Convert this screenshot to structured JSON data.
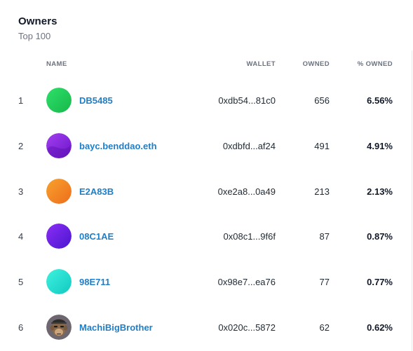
{
  "header": {
    "title": "Owners",
    "subtitle": "Top 100"
  },
  "columns": {
    "name": "NAME",
    "wallet": "WALLET",
    "owned": "OWNED",
    "percent_owned": "% OWNED"
  },
  "owners": [
    {
      "rank": "1",
      "name": "DB5485",
      "wallet": "0xdb54...81c0",
      "owned": "656",
      "percent": "6.56%",
      "avatar_colors": [
        "#2fe06a",
        "#16b84a"
      ]
    },
    {
      "rank": "2",
      "name": "bayc.benddao.eth",
      "wallet": "0xdbfd...af24",
      "owned": "491",
      "percent": "4.91%",
      "avatar_colors": [
        "#a23ff0",
        "#6b16c8"
      ]
    },
    {
      "rank": "3",
      "name": "E2A83B",
      "wallet": "0xe2a8...0a49",
      "owned": "213",
      "percent": "2.13%",
      "avatar_colors": [
        "#f7a22d",
        "#ee6d1c"
      ]
    },
    {
      "rank": "4",
      "name": "08C1AE",
      "wallet": "0x08c1...9f6f",
      "owned": "87",
      "percent": "0.87%",
      "avatar_colors": [
        "#8b2ef5",
        "#4a16d0"
      ]
    },
    {
      "rank": "5",
      "name": "98E711",
      "wallet": "0x98e7...ea76",
      "owned": "77",
      "percent": "0.77%",
      "avatar_colors": [
        "#3ef2dd",
        "#12c9c2"
      ]
    },
    {
      "rank": "6",
      "name": "MachiBigBrother",
      "wallet": "0x020c...5872",
      "owned": "62",
      "percent": "0.62%",
      "avatar_colors": [
        "#8a7f86",
        "#5b5158"
      ]
    }
  ],
  "colors": {
    "link": "#1e7fc9",
    "muted": "#6b7280",
    "text": "#1f2933"
  }
}
